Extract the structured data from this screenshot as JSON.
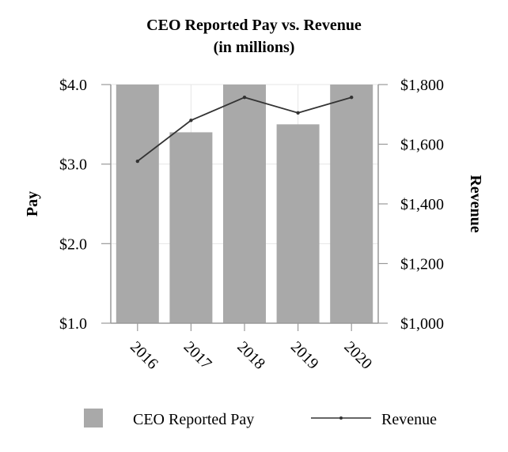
{
  "chart_data": {
    "type": "bar",
    "title": "CEO Reported Pay vs. Revenue",
    "subtitle": "(in millions)",
    "categories": [
      "2016",
      "2017",
      "2018",
      "2019",
      "2020"
    ],
    "series": [
      {
        "name": "CEO Reported Pay",
        "type": "bar",
        "axis": "left",
        "color": "#a9a9a9",
        "values": [
          4.0,
          3.4,
          4.0,
          3.5,
          4.0
        ]
      },
      {
        "name": "Revenue",
        "type": "line",
        "axis": "right",
        "color": "#333333",
        "values": [
          1543,
          1680,
          1757,
          1705,
          1757
        ]
      }
    ],
    "ylabel": "Pay",
    "ylabel_right": "Revenue",
    "ylim": [
      1.0,
      4.0
    ],
    "ylim_right": [
      1000,
      1800
    ],
    "yticks": [
      "$1.0",
      "$2.0",
      "$3.0",
      "$4.0"
    ],
    "yticks_right": [
      "$1,000",
      "$1,200",
      "$1,400",
      "$1,600",
      "$1,800"
    ],
    "grid": true,
    "legend_position": "bottom"
  }
}
